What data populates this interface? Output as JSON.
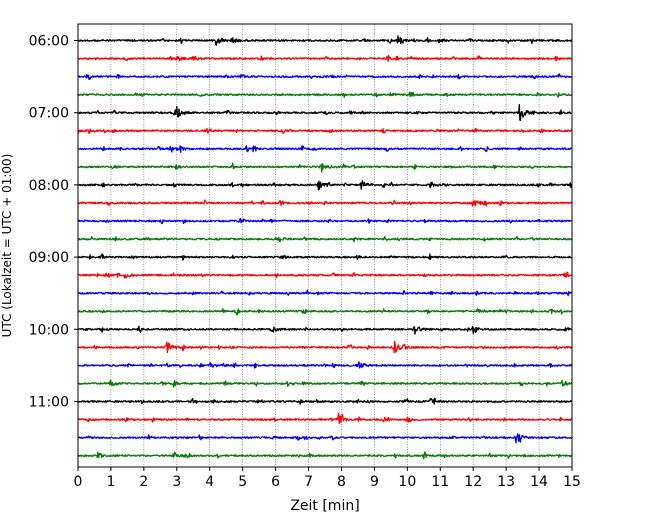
{
  "chart_data": {
    "type": "line",
    "subtype": "helicorder",
    "xlabel": "Zeit  [min]",
    "ylabel": "UTC (Lokalzeit = UTC + 01:00)",
    "xlim": [
      0,
      15
    ],
    "x_ticks": [
      "0",
      "1",
      "2",
      "3",
      "4",
      "5",
      "6",
      "7",
      "8",
      "9",
      "10",
      "11",
      "12",
      "13",
      "14",
      "15"
    ],
    "y_tick_labels": [
      "06:00",
      "07:00",
      "08:00",
      "09:00",
      "10:00",
      "11:00"
    ],
    "trace_start_times": [
      "06:00",
      "06:15",
      "06:30",
      "06:45",
      "07:00",
      "07:15",
      "07:30",
      "07:45",
      "08:00",
      "08:15",
      "08:30",
      "08:45",
      "09:00",
      "09:15",
      "09:30",
      "09:45",
      "10:00",
      "10:15",
      "10:30",
      "10:45",
      "11:00",
      "11:15",
      "11:30",
      "11:45"
    ],
    "trace_colors_cycle": [
      "#000000",
      "#ff0000",
      "#0000ff",
      "#008000"
    ],
    "grid": "vertical dotted",
    "events": [
      {
        "trace": 0,
        "x": 4.2,
        "amp": 0.6
      },
      {
        "trace": 0,
        "x": 4.65,
        "amp": 0.35
      },
      {
        "trace": 0,
        "x": 9.7,
        "amp": 0.55
      },
      {
        "trace": 1,
        "x": 3.5,
        "amp": 0.3
      },
      {
        "trace": 1,
        "x": 3.0,
        "amp": 0.25
      },
      {
        "trace": 4,
        "x": 3.0,
        "amp": 0.6
      },
      {
        "trace": 4,
        "x": 13.4,
        "amp": 1.0
      },
      {
        "trace": 5,
        "x": 0.3,
        "amp": 0.3
      },
      {
        "trace": 5,
        "x": 3.9,
        "amp": 0.3
      },
      {
        "trace": 6,
        "x": 2.8,
        "amp": 0.45
      },
      {
        "trace": 6,
        "x": 3.1,
        "amp": 0.3
      },
      {
        "trace": 7,
        "x": 7.4,
        "amp": 0.7
      },
      {
        "trace": 8,
        "x": 7.3,
        "amp": 0.5
      },
      {
        "trace": 8,
        "x": 8.6,
        "amp": 0.55
      },
      {
        "trace": 8,
        "x": 10.7,
        "amp": 0.3
      },
      {
        "trace": 9,
        "x": 12.0,
        "amp": 0.6
      },
      {
        "trace": 11,
        "x": 6.1,
        "amp": 0.35
      },
      {
        "trace": 13,
        "x": 1.4,
        "amp": 0.3
      },
      {
        "trace": 15,
        "x": 12.1,
        "amp": 0.35
      },
      {
        "trace": 16,
        "x": 10.2,
        "amp": 0.65
      },
      {
        "trace": 16,
        "x": 12.0,
        "amp": 0.55
      },
      {
        "trace": 16,
        "x": 5.9,
        "amp": 0.3
      },
      {
        "trace": 17,
        "x": 2.7,
        "amp": 0.6
      },
      {
        "trace": 17,
        "x": 9.6,
        "amp": 0.85
      },
      {
        "trace": 18,
        "x": 8.5,
        "amp": 0.6
      },
      {
        "trace": 18,
        "x": 4.0,
        "amp": 0.35
      },
      {
        "trace": 19,
        "x": 2.9,
        "amp": 0.45
      },
      {
        "trace": 19,
        "x": 1.0,
        "amp": 0.3
      },
      {
        "trace": 19,
        "x": 14.7,
        "amp": 0.3
      },
      {
        "trace": 20,
        "x": 10.7,
        "amp": 0.35
      },
      {
        "trace": 21,
        "x": 7.9,
        "amp": 0.7
      },
      {
        "trace": 21,
        "x": 10.0,
        "amp": 0.35
      },
      {
        "trace": 22,
        "x": 13.3,
        "amp": 0.7
      },
      {
        "trace": 23,
        "x": 2.9,
        "amp": 0.45
      },
      {
        "trace": 23,
        "x": 0.6,
        "amp": 0.3
      }
    ]
  }
}
